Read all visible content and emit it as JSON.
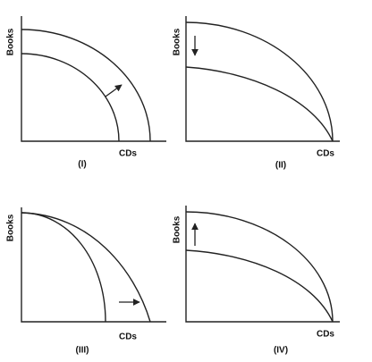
{
  "panels": [
    {
      "y_label": "Books",
      "x_label": "CDs",
      "caption": "(I)"
    },
    {
      "y_label": "Books",
      "x_label": "CDs",
      "caption": "(II)"
    },
    {
      "y_label": "Books",
      "x_label": "CDs",
      "caption": "(III)"
    },
    {
      "y_label": "Books",
      "x_label": "CDs",
      "caption": "(IV)"
    }
  ]
}
